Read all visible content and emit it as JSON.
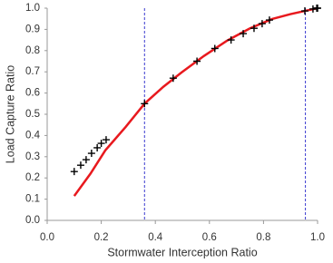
{
  "chart_data": {
    "type": "scatter",
    "xlabel": "Stormwater Interception Ratio",
    "ylabel": "Load Capture Ratio",
    "xlim": [
      0,
      1
    ],
    "ylim": [
      0,
      1
    ],
    "xticks": [
      {
        "value": 0,
        "label": "0.0"
      },
      0.2,
      0.4,
      0.6,
      0.8,
      {
        "value": 1,
        "label": "1.0"
      }
    ],
    "yticks": [
      {
        "value": 0,
        "label": "0.0"
      },
      0.1,
      0.2,
      0.3,
      0.4,
      0.5,
      0.6,
      0.7,
      0.8,
      0.9,
      {
        "value": 1,
        "label": "1.0"
      }
    ],
    "grid": false,
    "reference_lines": {
      "x": [
        0.36,
        0.955
      ],
      "color": "#3a3ad0"
    },
    "series": [
      {
        "type": "scatter",
        "color": "#000000",
        "x": [
          0.1,
          0.124,
          0.144,
          0.164,
          0.185,
          0.2,
          0.218,
          0.36,
          0.466,
          0.554,
          0.62,
          0.68,
          0.725,
          0.765,
          0.795,
          0.822,
          0.953,
          0.983,
          0.997,
          1.0
        ],
        "values": [
          0.23,
          0.26,
          0.286,
          0.316,
          0.342,
          0.363,
          0.38,
          0.55,
          0.67,
          0.75,
          0.81,
          0.85,
          0.88,
          0.905,
          0.927,
          0.944,
          0.987,
          0.996,
          1.0,
          1.0
        ]
      },
      {
        "type": "line",
        "color": "#e8191e",
        "x": [
          0.1,
          0.16,
          0.215,
          0.29,
          0.36,
          0.43,
          0.497,
          0.58,
          0.664,
          0.75,
          0.832,
          0.9,
          0.953,
          1.0
        ],
        "values": [
          0.115,
          0.22,
          0.33,
          0.44,
          0.55,
          0.63,
          0.697,
          0.775,
          0.846,
          0.905,
          0.949,
          0.972,
          0.987,
          1.0
        ]
      }
    ]
  }
}
